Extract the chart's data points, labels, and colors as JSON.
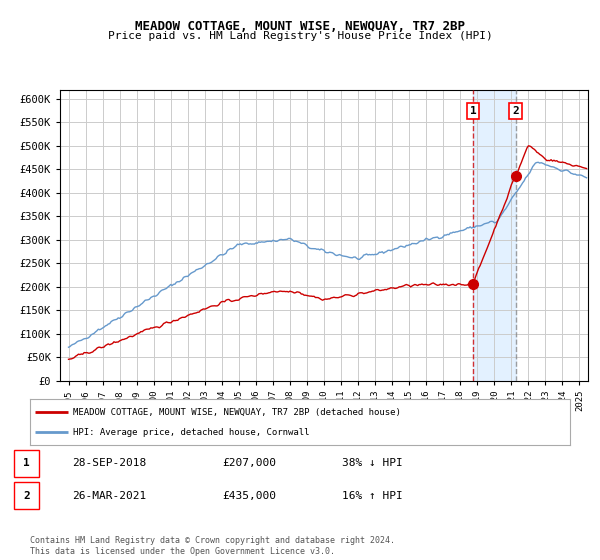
{
  "title": "MEADOW COTTAGE, MOUNT WISE, NEWQUAY, TR7 2BP",
  "subtitle": "Price paid vs. HM Land Registry's House Price Index (HPI)",
  "legend_line1": "MEADOW COTTAGE, MOUNT WISE, NEWQUAY, TR7 2BP (detached house)",
  "legend_line2": "HPI: Average price, detached house, Cornwall",
  "table": [
    {
      "num": "1",
      "date": "28-SEP-2018",
      "price": "£207,000",
      "change": "38% ↓ HPI"
    },
    {
      "num": "2",
      "date": "26-MAR-2021",
      "price": "£435,000",
      "change": "16% ↑ HPI"
    }
  ],
  "footer": "Contains HM Land Registry data © Crown copyright and database right 2024.\nThis data is licensed under the Open Government Licence v3.0.",
  "sale1_date_num": 2018.75,
  "sale1_price": 207000,
  "sale2_date_num": 2021.25,
  "sale2_price": 435000,
  "red_line_color": "#cc0000",
  "blue_line_color": "#6699cc",
  "dot_color": "#cc0000",
  "vline_color": "#cc0000",
  "shade_color": "#ddeeff",
  "grid_color": "#cccccc",
  "background_color": "#ffffff",
  "ylim": [
    0,
    620000
  ],
  "xlim_start": 1994.5,
  "xlim_end": 2025.5,
  "yticks": [
    0,
    50000,
    100000,
    150000,
    200000,
    250000,
    300000,
    350000,
    400000,
    450000,
    500000,
    550000,
    600000
  ],
  "xticks": [
    1995,
    1996,
    1997,
    1998,
    1999,
    2000,
    2001,
    2002,
    2003,
    2004,
    2005,
    2006,
    2007,
    2008,
    2009,
    2010,
    2011,
    2012,
    2013,
    2014,
    2015,
    2016,
    2017,
    2018,
    2019,
    2020,
    2021,
    2022,
    2023,
    2024,
    2025
  ]
}
